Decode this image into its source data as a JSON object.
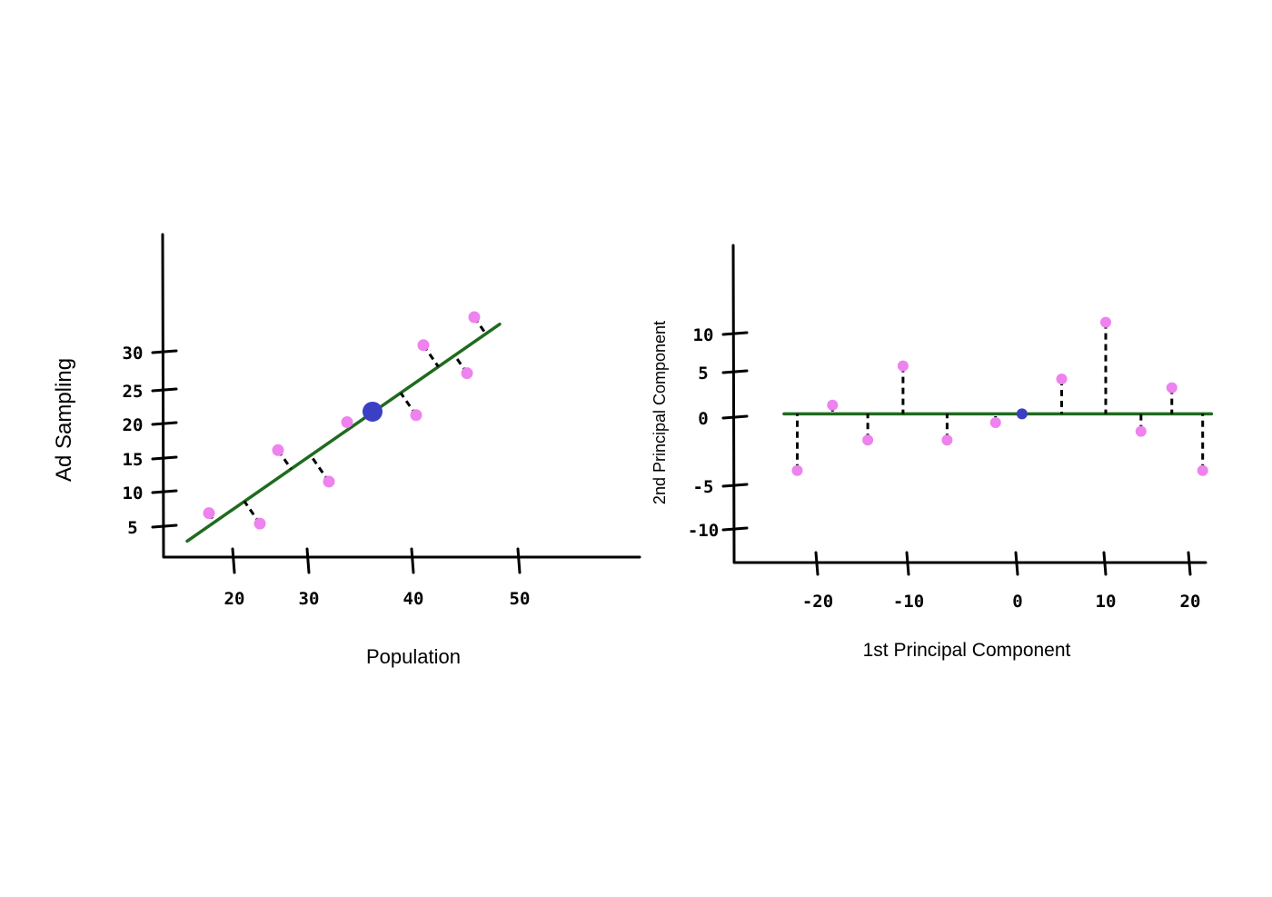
{
  "colors": {
    "point": "#ee82ee",
    "center_point": "#3a3fc4",
    "fit_line": "#1f6b1f",
    "projection": "#000000"
  },
  "chart_data": [
    {
      "type": "scatter",
      "xlabel": "Population",
      "ylabel": "Ad Sampling",
      "x_ticks": [
        "20",
        "30",
        "40",
        "50"
      ],
      "y_ticks": [
        "5",
        "10",
        "15",
        "20",
        "25",
        "30"
      ],
      "grid": false,
      "points": [
        {
          "x": 16.5,
          "y": 7
        },
        {
          "x": 23.5,
          "y": 5.5
        },
        {
          "x": 26,
          "y": 16
        },
        {
          "x": 33,
          "y": 11.5
        },
        {
          "x": 35.5,
          "y": 20
        },
        {
          "x": 45,
          "y": 21
        },
        {
          "x": 46,
          "y": 31
        },
        {
          "x": 52,
          "y": 27
        },
        {
          "x": 53,
          "y": 35
        }
      ],
      "center": {
        "x": 39,
        "y": 21.5
      },
      "fit_line": {
        "from": {
          "x": 13.5,
          "y": 3
        },
        "to": {
          "x": 56.5,
          "y": 34
        }
      },
      "projections": "dashed"
    },
    {
      "type": "scatter",
      "xlabel": "1st Principal Component",
      "ylabel": "2nd Principal Component",
      "x_ticks": [
        "-20",
        "-10",
        "0",
        "10",
        "20"
      ],
      "y_ticks": [
        "10",
        "5",
        "0",
        "-5",
        "-10"
      ],
      "grid": false,
      "points": [
        {
          "x": -25,
          "y": -5.5
        },
        {
          "x": -21,
          "y": 2
        },
        {
          "x": -17,
          "y": -2
        },
        {
          "x": -13,
          "y": 6.5
        },
        {
          "x": -8,
          "y": -2
        },
        {
          "x": -2.5,
          "y": 0
        },
        {
          "x": 5,
          "y": 5
        },
        {
          "x": 10,
          "y": 11.5
        },
        {
          "x": 14,
          "y": -1
        },
        {
          "x": 17.5,
          "y": 4
        },
        {
          "x": 21,
          "y": -5.5
        }
      ],
      "center": {
        "x": 0.5,
        "y": 1
      },
      "fit_line": {
        "from": {
          "x": -26.5,
          "y": 1
        },
        "to": {
          "x": 22,
          "y": 1
        }
      },
      "projections": "dashed"
    }
  ]
}
